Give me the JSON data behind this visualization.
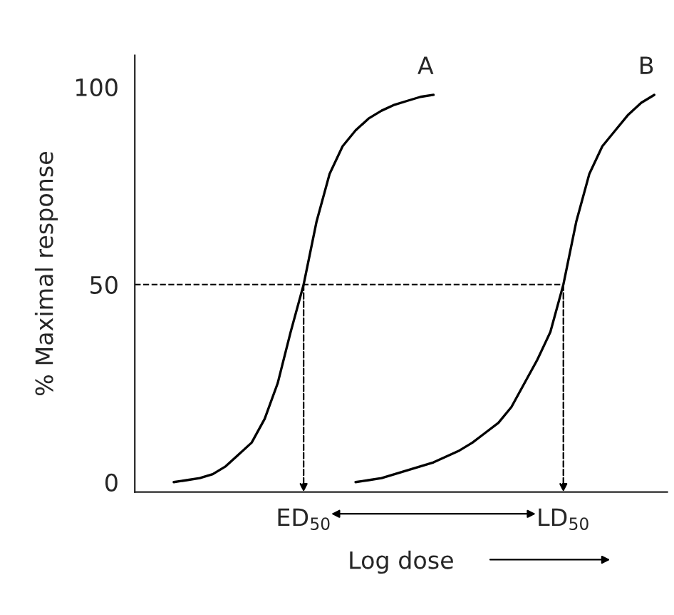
{
  "chart_data": {
    "type": "line",
    "ylabel": "% Maximal response",
    "xlabel": "Log dose",
    "categories": [
      null,
      null,
      null,
      null,
      null,
      null,
      null,
      null,
      null,
      null,
      null,
      null,
      "ED$_{50}$",
      null,
      null,
      null,
      null,
      null,
      null,
      null,
      null,
      null,
      null,
      null,
      null,
      null,
      null,
      null,
      null,
      null,
      null,
      null,
      "LD$_{50}$",
      null,
      null,
      null,
      null,
      null,
      null,
      null,
      null
    ],
    "series": [
      {
        "color": "#000000",
        "values": [
          null,
          null,
          0,
          0.5,
          1,
          2,
          4,
          7,
          10,
          16,
          25,
          38,
          50,
          66,
          78,
          85,
          89,
          92,
          94,
          95.5,
          96.5,
          97.5,
          98,
          null,
          null,
          null,
          null,
          null,
          null,
          null,
          null,
          null,
          null,
          null,
          null,
          null,
          null,
          null,
          null,
          null,
          null
        ]
      },
      {
        "color": "#000000",
        "values": [
          null,
          null,
          null,
          null,
          null,
          null,
          null,
          null,
          null,
          null,
          null,
          null,
          null,
          null,
          null,
          null,
          0,
          0.5,
          1,
          2,
          3,
          4,
          5,
          6.5,
          8,
          10,
          12.5,
          15,
          19,
          25,
          31,
          38,
          50,
          66,
          78,
          85,
          89,
          93,
          96,
          98,
          null
        ]
      }
    ],
    "annotations": [
      "A",
      "B"
    ],
    "ref_lines": [
      {
        "axis": "y",
        "value": 50,
        "line_style": "dashed"
      }
    ],
    "ylim": [
      -2.5,
      108
    ],
    "yticks": [
      0,
      50,
      100
    ],
    "grid": false,
    "legend": false,
    "marker": "none",
    "line_style": "solid"
  }
}
